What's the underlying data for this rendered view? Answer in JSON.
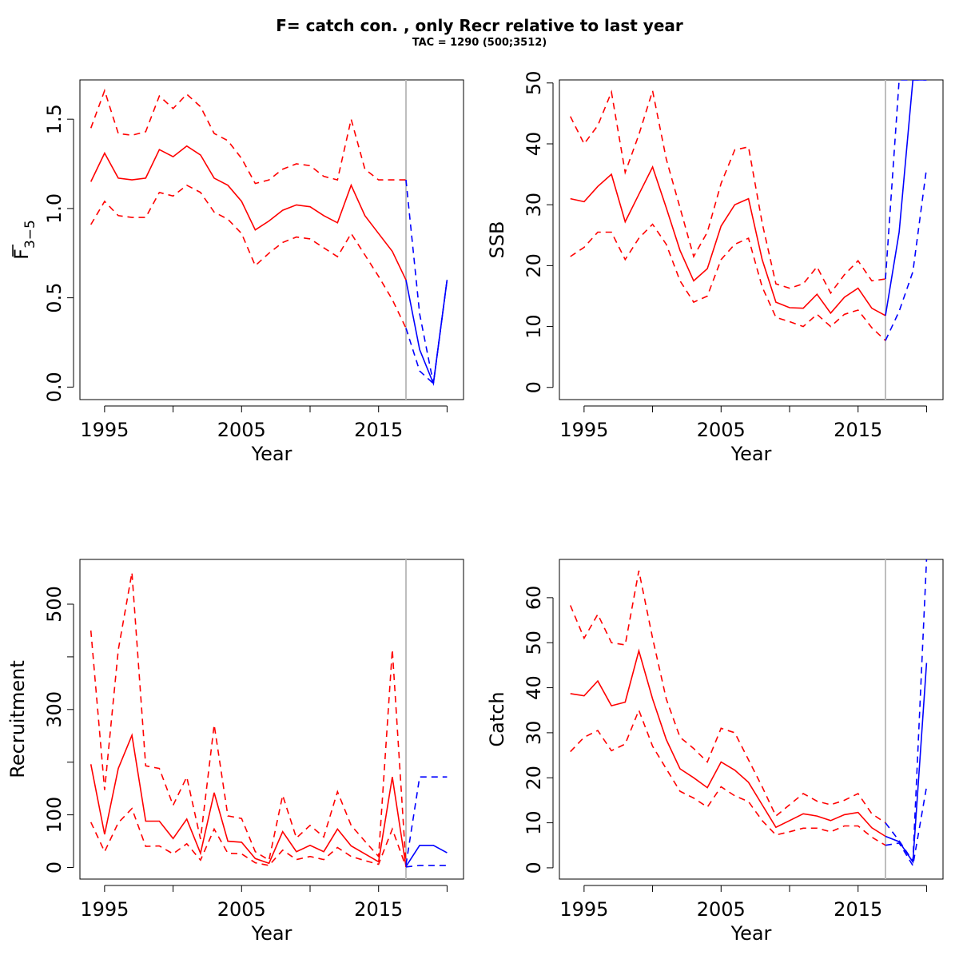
{
  "title": "F= catch con. , only Recr relative to last year",
  "subtitle": "TAC = 1290 (500;3512)",
  "colors": {
    "history": "#ff0000",
    "forecast": "#0000ff",
    "divider": "#bebebe",
    "axis": "#000000"
  },
  "chart_data": [
    {
      "type": "line",
      "ylabel": "F",
      "ylabel_sub": "3−5",
      "xlabel": "Year",
      "xlim": [
        1993.2,
        2021.2
      ],
      "ylim": [
        -0.07,
        1.72
      ],
      "xticks": [
        1995,
        2000,
        2005,
        2010,
        2015,
        2020
      ],
      "xtick_labels": [
        "1995",
        "",
        "2005",
        "",
        "2015",
        ""
      ],
      "yticks": [
        0,
        0.5,
        1.0,
        1.5
      ],
      "ytick_labels": [
        "0.0",
        "0.5",
        "1.0",
        "1.5"
      ],
      "divider_x": 2017,
      "x": [
        1994,
        1995,
        1996,
        1997,
        1998,
        1999,
        2000,
        2001,
        2002,
        2003,
        2004,
        2005,
        2006,
        2007,
        2008,
        2009,
        2010,
        2011,
        2012,
        2013,
        2014,
        2015,
        2016,
        2017
      ],
      "series": [
        {
          "role": "estimate",
          "style": "solid",
          "values": [
            1.15,
            1.31,
            1.17,
            1.16,
            1.17,
            1.33,
            1.29,
            1.35,
            1.3,
            1.17,
            1.13,
            1.04,
            0.88,
            0.93,
            0.99,
            1.02,
            1.01,
            0.96,
            0.92,
            1.13,
            0.96,
            0.86,
            0.76,
            0.6
          ]
        },
        {
          "role": "upper",
          "style": "dashed",
          "values": [
            1.45,
            1.66,
            1.42,
            1.41,
            1.43,
            1.63,
            1.56,
            1.64,
            1.57,
            1.42,
            1.38,
            1.28,
            1.14,
            1.16,
            1.22,
            1.25,
            1.24,
            1.18,
            1.16,
            1.5,
            1.22,
            1.16,
            1.16,
            1.16
          ]
        },
        {
          "role": "lower",
          "style": "dashed",
          "values": [
            0.91,
            1.04,
            0.96,
            0.95,
            0.95,
            1.09,
            1.07,
            1.13,
            1.09,
            0.98,
            0.94,
            0.86,
            0.68,
            0.75,
            0.81,
            0.84,
            0.83,
            0.78,
            0.73,
            0.86,
            0.74,
            0.62,
            0.49,
            0.33
          ]
        }
      ],
      "forecast_x": [
        2017,
        2018,
        2019,
        2020
      ],
      "forecast": [
        {
          "role": "estimate",
          "style": "solid",
          "values": [
            0.6,
            0.21,
            0.02,
            0.6
          ]
        },
        {
          "role": "upper",
          "style": "dashed",
          "values": [
            1.16,
            0.41,
            0.02,
            0.6
          ]
        },
        {
          "role": "lower",
          "style": "dashed",
          "values": [
            0.33,
            0.09,
            0.02,
            0.6
          ]
        }
      ]
    },
    {
      "type": "line",
      "ylabel": "SSB",
      "xlabel": "Year",
      "xlim": [
        1993.2,
        2021.2
      ],
      "ylim": [
        -2,
        50.5
      ],
      "xticks": [
        1995,
        2000,
        2005,
        2010,
        2015,
        2020
      ],
      "xtick_labels": [
        "1995",
        "",
        "2005",
        "",
        "2015",
        ""
      ],
      "yticks": [
        0,
        10,
        20,
        30,
        40,
        50
      ],
      "ytick_labels": [
        "0",
        "10",
        "20",
        "30",
        "40",
        "50"
      ],
      "divider_x": 2017,
      "x": [
        1994,
        1995,
        1996,
        1997,
        1998,
        1999,
        2000,
        2001,
        2002,
        2003,
        2004,
        2005,
        2006,
        2007,
        2008,
        2009,
        2010,
        2011,
        2012,
        2013,
        2014,
        2015,
        2016,
        2017
      ],
      "series": [
        {
          "role": "estimate",
          "style": "solid",
          "values": [
            31,
            30.5,
            33,
            35,
            27.2,
            31.7,
            36.2,
            29.5,
            22.5,
            17.5,
            19.5,
            26.5,
            30,
            31,
            21,
            14,
            13.1,
            13,
            15.3,
            12.2,
            14.8,
            16.3,
            13,
            11.8
          ]
        },
        {
          "role": "upper",
          "style": "dashed",
          "values": [
            44.5,
            40,
            43,
            48.5,
            35.3,
            41.5,
            48.7,
            37.5,
            29.5,
            21.5,
            25.5,
            33.5,
            39,
            39.5,
            27,
            17,
            16.3,
            17,
            19.8,
            15.5,
            18.5,
            20.8,
            17.5,
            17.8
          ]
        },
        {
          "role": "lower",
          "style": "dashed",
          "values": [
            21.5,
            23,
            25.5,
            25.5,
            21,
            24.5,
            26.8,
            23.5,
            17.5,
            14,
            15,
            21,
            23.5,
            24.5,
            16.5,
            11.5,
            10.8,
            10,
            12,
            10,
            12,
            12.7,
            9.8,
            7.7
          ]
        }
      ],
      "forecast_x": [
        2017,
        2018,
        2019,
        2020
      ],
      "forecast": [
        {
          "role": "estimate",
          "style": "solid",
          "values": [
            11.8,
            25.5,
            50.5,
            50.5
          ]
        },
        {
          "role": "upper",
          "style": "dashed",
          "values": [
            17.8,
            50.5,
            50.5,
            50.5
          ]
        },
        {
          "role": "lower",
          "style": "dashed",
          "values": [
            7.7,
            12.5,
            19,
            36
          ]
        }
      ]
    },
    {
      "type": "line",
      "ylabel": "Recruitment",
      "xlabel": "Year",
      "xlim": [
        1993.2,
        2021.2
      ],
      "ylim": [
        -22,
        585
      ],
      "xticks": [
        1995,
        2000,
        2005,
        2010,
        2015,
        2020
      ],
      "xtick_labels": [
        "1995",
        "",
        "2005",
        "",
        "2015",
        ""
      ],
      "yticks": [
        0,
        100,
        200,
        300,
        400,
        500
      ],
      "ytick_labels": [
        "0",
        "100",
        "",
        "300",
        "",
        "500"
      ],
      "divider_x": 2017,
      "x": [
        1994,
        1995,
        1996,
        1997,
        1998,
        1999,
        2000,
        2001,
        2002,
        2003,
        2004,
        2005,
        2006,
        2007,
        2008,
        2009,
        2010,
        2011,
        2012,
        2013,
        2014,
        2015,
        2016,
        2017
      ],
      "series": [
        {
          "role": "estimate",
          "style": "solid",
          "values": [
            196,
            63,
            188,
            251,
            88,
            88,
            55,
            92,
            27,
            142,
            50,
            48,
            17,
            8,
            68,
            30,
            42,
            30,
            73,
            41,
            26,
            11,
            172,
            2
          ]
        },
        {
          "role": "upper",
          "style": "dashed",
          "values": [
            450,
            147,
            413,
            560,
            193,
            188,
            118,
            172,
            54,
            271,
            98,
            93,
            30,
            14,
            137,
            56,
            80,
            58,
            144,
            80,
            50,
            21,
            414,
            5
          ]
        },
        {
          "role": "lower",
          "style": "dashed",
          "values": [
            86,
            30,
            85,
            112,
            40,
            41,
            26,
            45,
            14,
            73,
            27,
            26,
            9,
            4,
            33,
            15,
            21,
            15,
            38,
            21,
            13,
            6,
            73,
            1
          ]
        }
      ],
      "forecast_x": [
        2017,
        2018,
        2019,
        2020
      ],
      "forecast": [
        {
          "role": "estimate",
          "style": "solid",
          "values": [
            2,
            42,
            42,
            28
          ]
        },
        {
          "role": "upper",
          "style": "dashed",
          "values": [
            5,
            172,
            172,
            172
          ]
        },
        {
          "role": "lower",
          "style": "dashed",
          "values": [
            1,
            4,
            4,
            4
          ]
        }
      ]
    },
    {
      "type": "line",
      "ylabel": "Catch",
      "xlabel": "Year",
      "xlim": [
        1993.2,
        2021.2
      ],
      "ylim": [
        -2.5,
        68.5
      ],
      "xticks": [
        1995,
        2000,
        2005,
        2010,
        2015,
        2020
      ],
      "xtick_labels": [
        "1995",
        "",
        "2005",
        "",
        "2015",
        ""
      ],
      "yticks": [
        0,
        10,
        20,
        30,
        40,
        50,
        60
      ],
      "ytick_labels": [
        "0",
        "10",
        "20",
        "30",
        "40",
        "50",
        "60"
      ],
      "divider_x": 2017,
      "x": [
        1994,
        1995,
        1996,
        1997,
        1998,
        1999,
        2000,
        2001,
        2002,
        2003,
        2004,
        2005,
        2006,
        2007,
        2008,
        2009,
        2010,
        2011,
        2012,
        2013,
        2014,
        2015,
        2016,
        2017
      ],
      "series": [
        {
          "role": "estimate",
          "style": "solid",
          "values": [
            38.7,
            38.2,
            41.5,
            36,
            36.8,
            48.2,
            37.5,
            28.5,
            22,
            20,
            17.8,
            23.5,
            21.7,
            19,
            14,
            9,
            10.5,
            12,
            11.5,
            10.5,
            11.8,
            12.3,
            8.9,
            7
          ]
        },
        {
          "role": "upper",
          "style": "dashed",
          "values": [
            58.3,
            51,
            56.3,
            50,
            49.5,
            66,
            51,
            37.5,
            29,
            26.5,
            23.5,
            31,
            30,
            24,
            18,
            11.5,
            14,
            16.5,
            14.8,
            14,
            15,
            16.5,
            12,
            10
          ]
        },
        {
          "role": "lower",
          "style": "dashed",
          "values": [
            25.8,
            29,
            30.5,
            26,
            27.5,
            35,
            27,
            22,
            17,
            15.5,
            13.5,
            18,
            16,
            14.7,
            10.5,
            7.3,
            8,
            8.8,
            8.8,
            8,
            9.3,
            9.3,
            6.8,
            5
          ]
        }
      ],
      "forecast_x": [
        2017,
        2018,
        2019,
        2020
      ],
      "forecast": [
        {
          "role": "estimate",
          "style": "solid",
          "values": [
            7,
            5.8,
            1.3,
            45.5
          ]
        },
        {
          "role": "upper",
          "style": "dashed",
          "values": [
            10,
            6,
            1.5,
            68.5
          ]
        },
        {
          "role": "lower",
          "style": "dashed",
          "values": [
            5,
            5.5,
            0.5,
            18
          ]
        }
      ]
    }
  ]
}
